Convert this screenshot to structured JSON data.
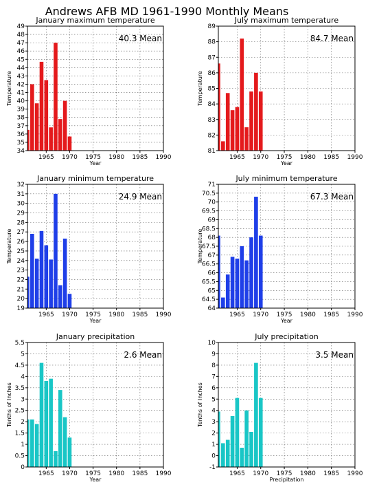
{
  "figure_title": "Andrews AFB MD  1961-1990 Monthly Means",
  "chart_data": [
    {
      "type": "bar",
      "title": "January maximum temperature",
      "mean_label": "40.3 Mean",
      "xlabel": "Year",
      "ylabel": "Temperature",
      "color": "#e41a1c",
      "xlim": [
        1961,
        1990
      ],
      "ylim": [
        34,
        49
      ],
      "yticks": [
        34,
        35,
        36,
        37,
        38,
        39,
        40,
        41,
        42,
        43,
        44,
        45,
        46,
        47,
        48,
        49
      ],
      "xticks": [
        1965,
        1970,
        1975,
        1980,
        1985,
        1990
      ],
      "x": [
        1961,
        1962,
        1963,
        1964,
        1965,
        1966,
        1967,
        1968,
        1969,
        1970
      ],
      "values": [
        36.5,
        42.0,
        39.7,
        44.7,
        42.5,
        36.8,
        47.0,
        37.8,
        40.0,
        35.7
      ]
    },
    {
      "type": "bar",
      "title": "July maximum temperature",
      "mean_label": "84.7 Mean",
      "xlabel": "Year",
      "ylabel": "Temperature",
      "color": "#e41a1c",
      "xlim": [
        1961,
        1990
      ],
      "ylim": [
        81,
        89
      ],
      "yticks": [
        81,
        82,
        83,
        84,
        85,
        86,
        87,
        88,
        89
      ],
      "xticks": [
        1965,
        1970,
        1975,
        1980,
        1985,
        1990
      ],
      "x": [
        1961,
        1962,
        1963,
        1964,
        1965,
        1966,
        1967,
        1968,
        1969,
        1970
      ],
      "values": [
        86.6,
        81.6,
        84.7,
        83.6,
        83.8,
        88.2,
        82.5,
        84.8,
        86.0,
        84.8
      ]
    },
    {
      "type": "bar",
      "title": "January minimum temperature",
      "mean_label": "24.9 Mean",
      "xlabel": "Year",
      "ylabel": "Temperature",
      "color": "#1f3fe8",
      "xlim": [
        1961,
        1990
      ],
      "ylim": [
        19,
        32
      ],
      "yticks": [
        19,
        20,
        21,
        22,
        23,
        24,
        25,
        26,
        27,
        28,
        29,
        30,
        31,
        32
      ],
      "xticks": [
        1965,
        1970,
        1975,
        1980,
        1985,
        1990
      ],
      "x": [
        1961,
        1962,
        1963,
        1964,
        1965,
        1966,
        1967,
        1968,
        1969,
        1970
      ],
      "values": [
        22.3,
        26.8,
        24.2,
        27.1,
        25.6,
        24.1,
        31.0,
        21.4,
        26.3,
        20.5
      ]
    },
    {
      "type": "bar",
      "title": "July minimum temperature",
      "mean_label": "67.3 Mean",
      "xlabel": "Year",
      "ylabel": "Temperature",
      "color": "#1f3fe8",
      "xlim": [
        1961,
        1990
      ],
      "ylim": [
        64,
        71
      ],
      "yticks": [
        64,
        64.5,
        65,
        65.5,
        66,
        66.5,
        67,
        67.5,
        68,
        68.5,
        69,
        69.5,
        70,
        70.5,
        71
      ],
      "xticks": [
        1965,
        1970,
        1975,
        1980,
        1985,
        1990
      ],
      "x": [
        1961,
        1962,
        1963,
        1964,
        1965,
        1966,
        1967,
        1968,
        1969,
        1970
      ],
      "values": [
        68.1,
        64.6,
        65.9,
        66.9,
        66.8,
        67.5,
        66.7,
        68.0,
        70.3,
        68.1
      ]
    },
    {
      "type": "bar",
      "title": "January precipitation",
      "mean_label": "2.6 Mean",
      "xlabel": "Year",
      "ylabel": "Tenths of Inches",
      "color": "#19c6c6",
      "xlim": [
        1961,
        1990
      ],
      "ylim": [
        0,
        5.5
      ],
      "yticks": [
        0,
        0.5,
        1,
        1.5,
        2,
        2.5,
        3,
        3.5,
        4,
        4.5,
        5,
        5.5
      ],
      "xticks": [
        1965,
        1970,
        1975,
        1980,
        1985,
        1990
      ],
      "x": [
        1961,
        1962,
        1963,
        1964,
        1965,
        1966,
        1967,
        1968,
        1969,
        1970
      ],
      "values": [
        2.1,
        2.1,
        1.9,
        4.6,
        3.8,
        3.9,
        0.7,
        3.4,
        2.2,
        1.3
      ]
    },
    {
      "type": "bar",
      "title": "July precipitation",
      "mean_label": "3.5 Mean",
      "xlabel": "Precipitation",
      "ylabel": "Tenths of Inches",
      "color": "#19c6c6",
      "xlim": [
        1961,
        1990
      ],
      "ylim": [
        -1,
        10
      ],
      "yticks": [
        -1,
        0,
        1,
        2,
        3,
        4,
        5,
        6,
        7,
        8,
        9,
        10
      ],
      "xticks": [
        1965,
        1970,
        1975,
        1980,
        1985,
        1990
      ],
      "x": [
        1961,
        1962,
        1963,
        1964,
        1965,
        1966,
        1967,
        1968,
        1969,
        1970
      ],
      "values": [
        3.9,
        1.1,
        1.4,
        3.5,
        5.1,
        0.7,
        4.0,
        2.1,
        8.2,
        5.1
      ]
    }
  ]
}
